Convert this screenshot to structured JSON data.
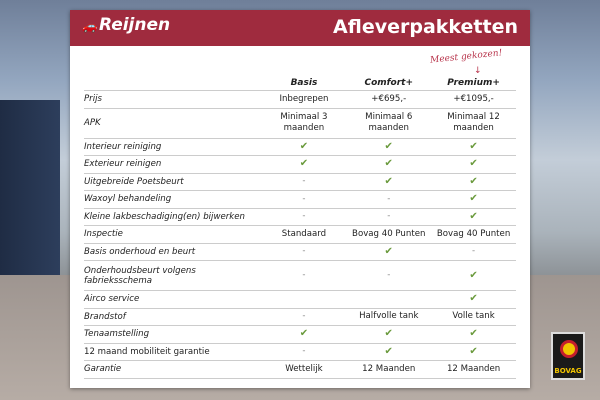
{
  "header": {
    "logo": "Reijnen",
    "title": "Afleverpakketten"
  },
  "annotation": "Meest gekozen!",
  "columns": [
    "Basis",
    "Comfort+",
    "Premium+"
  ],
  "rows": [
    {
      "label": "Prijs",
      "values": [
        "Inbegrepen",
        "+€695,-",
        "+€1095,-"
      ]
    },
    {
      "label": "APK",
      "values": [
        "Minimaal 3 maanden",
        "Minimaal 6 maanden",
        "Minimaal 12 maanden"
      ],
      "tall": true
    },
    {
      "label": "Interieur reiniging",
      "values": [
        "check",
        "check",
        "check"
      ]
    },
    {
      "label": "Exterieur reinigen",
      "values": [
        "check",
        "check",
        "check"
      ]
    },
    {
      "label": "Uitgebreide Poetsbeurt",
      "values": [
        "-",
        "check",
        "check"
      ]
    },
    {
      "label": "Waxoyl behandeling",
      "values": [
        "-",
        "-",
        "check"
      ]
    },
    {
      "label": "Kleine lakbeschadiging(en) bijwerken",
      "values": [
        "-",
        "-",
        "check"
      ]
    },
    {
      "label": "Inspectie",
      "values": [
        "Standaard",
        "Bovag 40 Punten",
        "Bovag 40 Punten"
      ]
    },
    {
      "label": "Basis onderhoud en beurt",
      "values": [
        "-",
        "check",
        "-"
      ]
    },
    {
      "label": "Onderhoudsbeurt volgens fabrieksschema",
      "values": [
        "-",
        "-",
        "check"
      ],
      "tall": true
    },
    {
      "label": "Airco service",
      "values": [
        "",
        "",
        "check"
      ]
    },
    {
      "label": "Brandstof",
      "values": [
        "-",
        "Halfvolle tank",
        "Volle tank"
      ]
    },
    {
      "label": "Tenaamstelling",
      "values": [
        "check",
        "check",
        "check"
      ]
    },
    {
      "label": "12 maand mobiliteit garantie",
      "values": [
        "-",
        "check",
        "check"
      ],
      "upright": true
    },
    {
      "label": "Garantie",
      "values": [
        "Wettelijk",
        "12 Maanden",
        "12 Maanden"
      ]
    }
  ],
  "badge": "BOVAG",
  "colors": {
    "brand": "#9f2b3e",
    "check": "#6a9a3c"
  }
}
